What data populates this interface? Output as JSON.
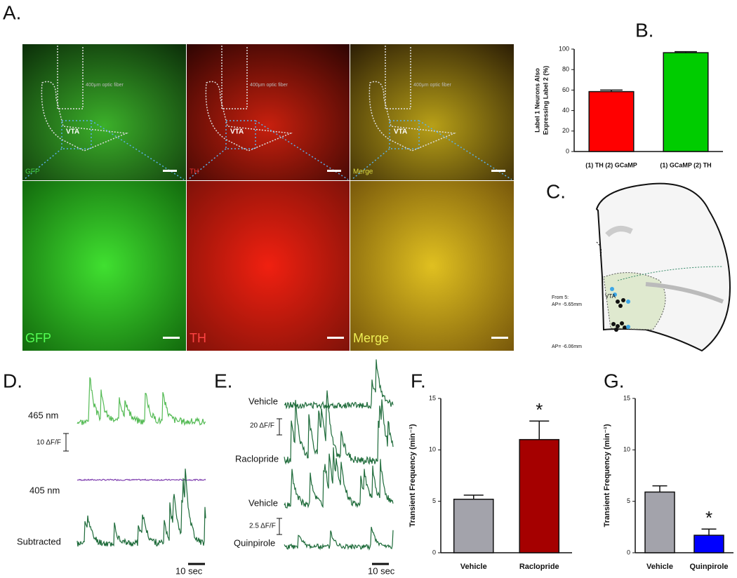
{
  "panel_labels": [
    "A.",
    "B.",
    "C.",
    "D.",
    "E.",
    "F.",
    "G."
  ],
  "images": {
    "channels": [
      "GFP",
      "TH",
      "Merge"
    ],
    "fiber_label": "400μm optic fiber",
    "region": "VTA"
  },
  "schematic": {
    "region": "VTA",
    "from": "From 5:",
    "ap_first": "AP= -5.65mm",
    "ap_second": "AP= -6.06mm"
  },
  "traces_d": {
    "labels": [
      "465 nm",
      "405 nm",
      "Subtracted"
    ],
    "scale_y": "10 ΔF/F",
    "scale_x": "10 sec"
  },
  "traces_e": {
    "labels": [
      "Vehicle",
      "Raclopride",
      "Vehicle",
      "Quinpirole"
    ],
    "scale_y": [
      "20 ΔF/F",
      "2.5 ΔF/F"
    ],
    "scale_x": "10 sec"
  },
  "chart_data": [
    {
      "type": "bar",
      "y_label": [
        "Label 1 Neurons Also",
        "Expressing Label 2 (%)"
      ],
      "categories": [
        "(1) TH (2) GCaMP",
        "(1) GCaMP (2) TH"
      ],
      "values": [
        58.5,
        96.5
      ],
      "errors": [
        1.5,
        1.0
      ],
      "colors": [
        "#ff0000",
        "#00cc00"
      ],
      "ylim": [
        0,
        100
      ],
      "yticks": [
        0,
        20,
        40,
        60,
        80,
        100
      ]
    },
    {
      "type": "bar",
      "y_label": [
        "Transient Frequency (min⁻¹)"
      ],
      "categories": [
        "Vehicle",
        "Raclopride"
      ],
      "values": [
        5.2,
        11.0
      ],
      "errors": [
        0.4,
        1.8
      ],
      "colors": [
        "#a3a3ab",
        "#a50000"
      ],
      "significance": [
        null,
        "*"
      ],
      "ylim": [
        0,
        15
      ],
      "yticks": [
        0,
        5,
        10,
        15
      ]
    },
    {
      "type": "bar",
      "y_label": [
        "Transient Frequency (min⁻¹)"
      ],
      "categories": [
        "Vehicle",
        "Quinpirole"
      ],
      "values": [
        5.9,
        1.7
      ],
      "errors": [
        0.6,
        0.6
      ],
      "colors": [
        "#a3a3ab",
        "#0000ff"
      ],
      "significance": [
        null,
        "*"
      ],
      "ylim": [
        0,
        15
      ],
      "yticks": [
        0,
        5,
        10,
        15
      ]
    }
  ]
}
